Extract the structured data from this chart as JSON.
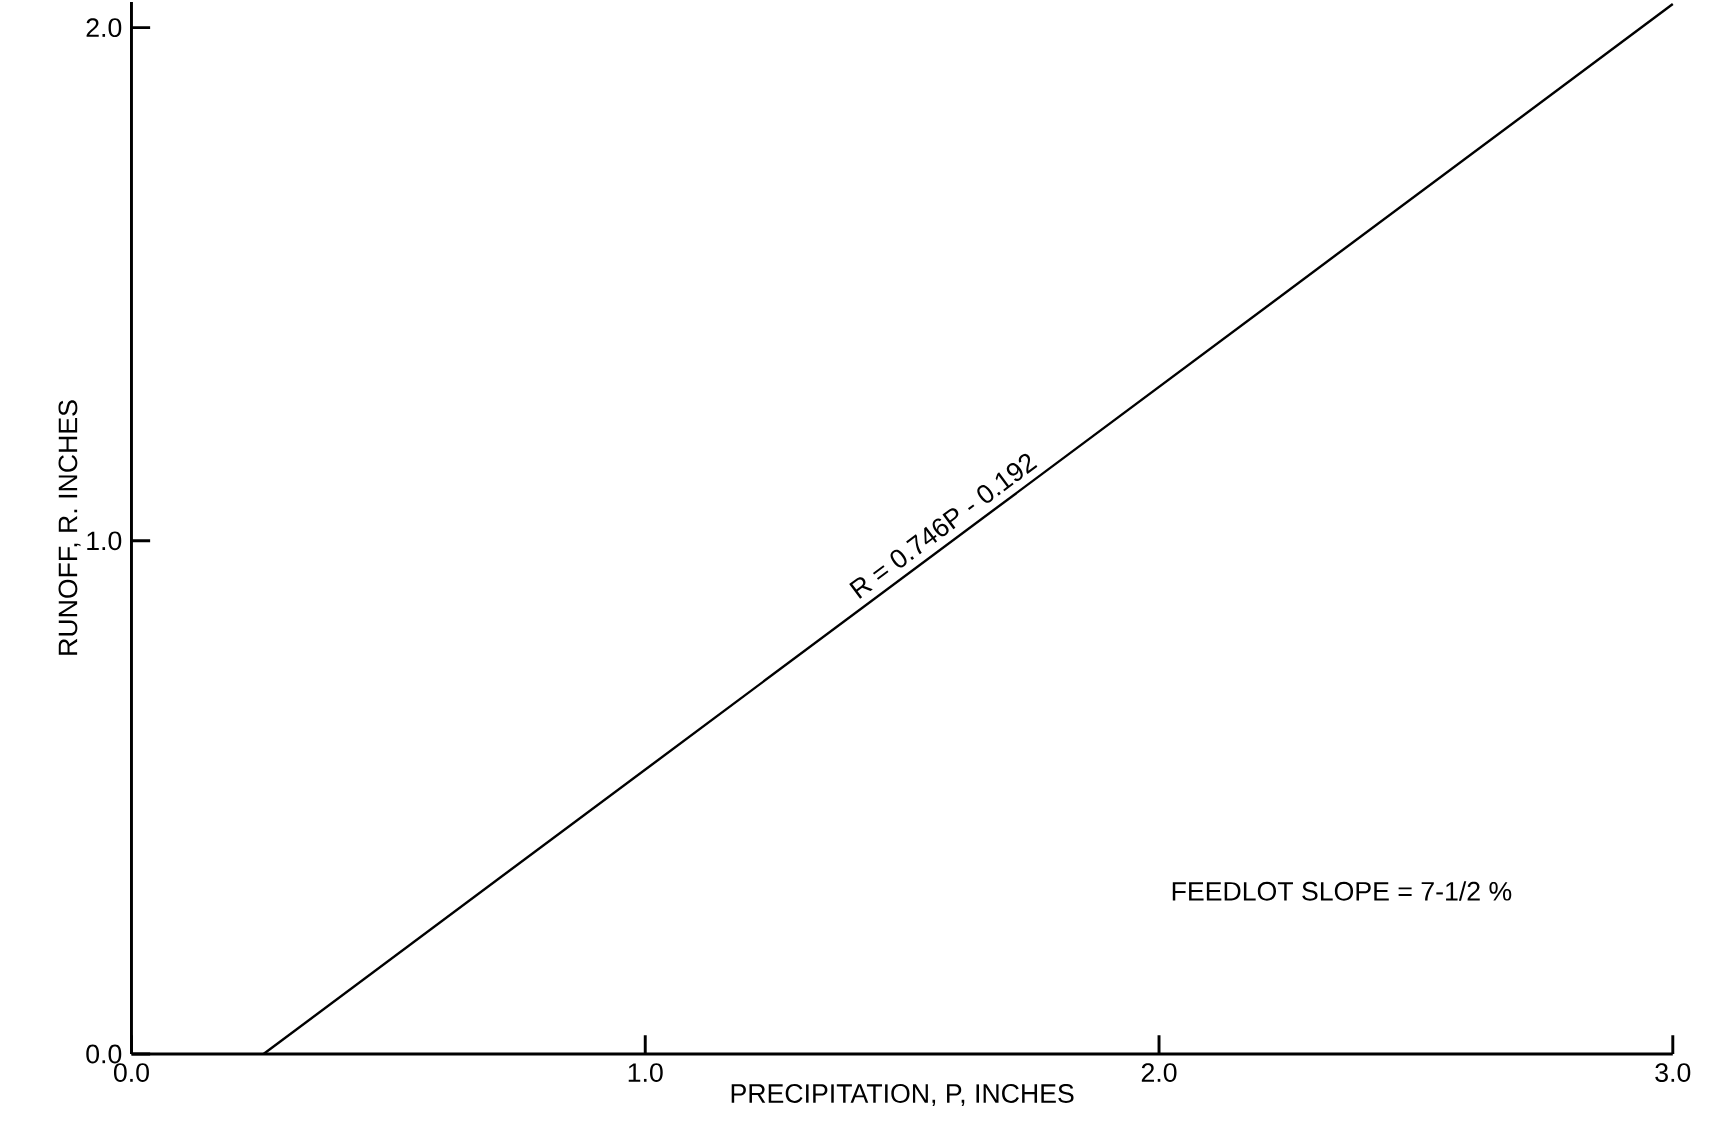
{
  "chart_data": {
    "type": "line",
    "xlabel": "PRECIPITATION, P, INCHES",
    "ylabel": "RUNOFF, R. INCHES",
    "xlim": [
      0,
      3.0
    ],
    "ylim": [
      0,
      2.05
    ],
    "xticks": [
      {
        "value": 0,
        "label": "0.0"
      },
      {
        "value": 1,
        "label": "1.0"
      },
      {
        "value": 2,
        "label": "2.0"
      },
      {
        "value": 3,
        "label": "3.0"
      }
    ],
    "yticks": [
      {
        "value": 0,
        "label": "0.0"
      },
      {
        "value": 1,
        "label": "1.0"
      },
      {
        "value": 2,
        "label": "2.0"
      }
    ],
    "series": [
      {
        "color": "#000000",
        "x": [
          0.257,
          3.0
        ],
        "values": [
          0,
          2.046
        ]
      }
    ],
    "annotations": [
      {
        "text": "R = 0.746P - 0.192",
        "x": 1.6,
        "y": 1.002
      },
      "FEEDLOT SLOPE = 7-1/2 %"
    ],
    "grid": false,
    "marker": "none",
    "line_style": "solid"
  }
}
